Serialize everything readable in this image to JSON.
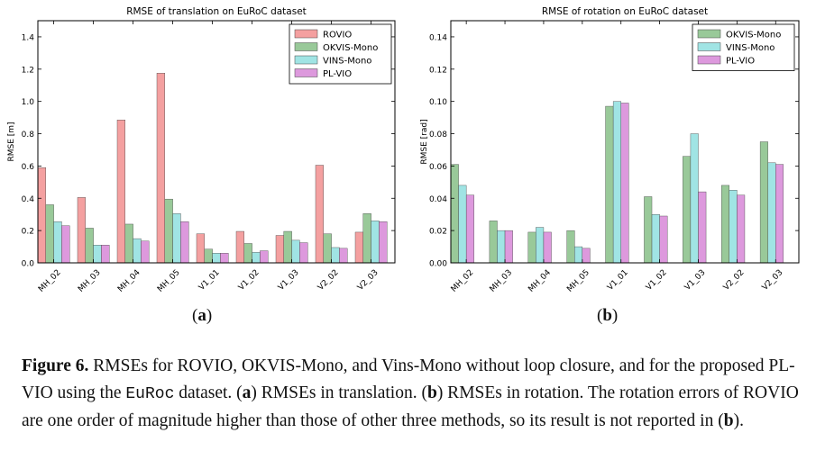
{
  "chart_data": [
    {
      "type": "bar",
      "title": "RMSE of translation on EuRoC dataset",
      "ylabel": "RMSE [m]",
      "xlabel": "",
      "ylim": [
        0,
        1.5
      ],
      "yticks": [
        "0.0",
        "0.2",
        "0.4",
        "0.6",
        "0.8",
        "1.0",
        "1.2",
        "1.4"
      ],
      "categories": [
        "MH_02",
        "MH_03",
        "MH_04",
        "MH_05",
        "V1_01",
        "V1_02",
        "V1_03",
        "V2_02",
        "V2_03"
      ],
      "legend_position": "top-right",
      "grid": false,
      "series": [
        {
          "name": "ROVIO",
          "color": "#f4a0a0",
          "values": [
            0.59,
            0.405,
            0.885,
            1.175,
            0.18,
            0.195,
            0.17,
            0.605,
            0.19
          ]
        },
        {
          "name": "OKVIS-Mono",
          "color": "#99c999",
          "values": [
            0.36,
            0.215,
            0.24,
            0.395,
            0.085,
            0.12,
            0.195,
            0.18,
            0.305
          ]
        },
        {
          "name": "VINS-Mono",
          "color": "#a0e4e4",
          "values": [
            0.255,
            0.11,
            0.15,
            0.305,
            0.06,
            0.065,
            0.14,
            0.095,
            0.26
          ]
        },
        {
          "name": "PL-VIO",
          "color": "#dd99dd",
          "values": [
            0.23,
            0.11,
            0.135,
            0.255,
            0.06,
            0.075,
            0.125,
            0.09,
            0.255
          ]
        }
      ]
    },
    {
      "type": "bar",
      "title": "RMSE of rotation on EuRoC dataset",
      "ylabel": "RMSE [rad]",
      "xlabel": "",
      "ylim": [
        0,
        0.15
      ],
      "yticks": [
        "0.00",
        "0.02",
        "0.04",
        "0.06",
        "0.08",
        "0.10",
        "0.12",
        "0.14"
      ],
      "categories": [
        "MH_02",
        "MH_03",
        "MH_04",
        "MH_05",
        "V1_01",
        "V1_02",
        "V1_03",
        "V2_02",
        "V2_03"
      ],
      "legend_position": "top-right",
      "grid": false,
      "series": [
        {
          "name": "OKVIS-Mono",
          "color": "#99c999",
          "values": [
            0.061,
            0.026,
            0.019,
            0.02,
            0.097,
            0.041,
            0.066,
            0.048,
            0.075
          ]
        },
        {
          "name": "VINS-Mono",
          "color": "#a0e4e4",
          "values": [
            0.048,
            0.02,
            0.022,
            0.01,
            0.1,
            0.03,
            0.08,
            0.045,
            0.062
          ]
        },
        {
          "name": "PL-VIO",
          "color": "#dd99dd",
          "values": [
            0.042,
            0.02,
            0.019,
            0.009,
            0.099,
            0.029,
            0.044,
            0.042,
            0.061
          ]
        }
      ]
    }
  ],
  "panel_labels": {
    "a": "a",
    "b": "b"
  },
  "caption": {
    "figure_label": "Figure 6.",
    "text_1": " RMSEs for ROVIO, OKVIS-Mono, and Vins-Mono without loop closure, and for the proposed PL-VIO using the ",
    "dataset_name": "EuRoc",
    "text_2": " dataset. (",
    "ref_a": "a",
    "text_3": ") RMSEs in translation. (",
    "ref_b": "b",
    "text_4": ") RMSEs in rotation. The rotation errors of ROVIO are one order of magnitude higher than those of other three methods, so its result is not reported in (",
    "ref_b2": "b",
    "text_5": ")."
  }
}
